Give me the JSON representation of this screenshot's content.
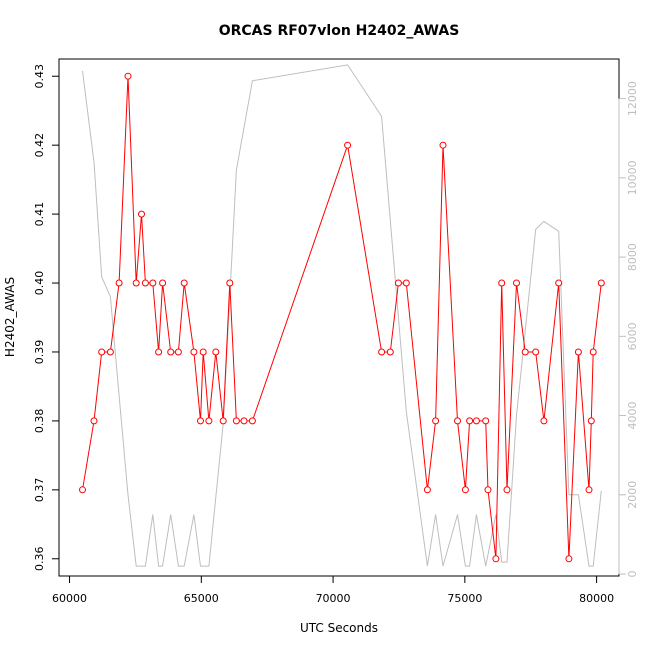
{
  "chart_data": {
    "type": "line",
    "title": "ORCAS RF07vlon H2402_AWAS",
    "xlabel": "UTC Seconds",
    "ylabel": "H2402_AWAS",
    "xlim": [
      59600,
      80850
    ],
    "ylim": [
      0.3575,
      0.4325
    ],
    "y2lim": [
      -50,
      13000
    ],
    "x_ticks": [
      60000,
      65000,
      70000,
      75000,
      80000
    ],
    "x_tick_labels": [
      "60000",
      "65000",
      "70000",
      "75000",
      "80000"
    ],
    "y_ticks": [
      0.36,
      0.37,
      0.38,
      0.39,
      0.4,
      0.41,
      0.42,
      0.43
    ],
    "y_tick_labels": [
      "0.36",
      "0.37",
      "0.38",
      "0.39",
      "0.40",
      "0.41",
      "0.42",
      "0.43"
    ],
    "y2_ticks": [
      0,
      2000,
      4000,
      6000,
      8000,
      10000,
      12000
    ],
    "y2_tick_labels": [
      "0",
      "2000",
      "4000",
      "6000",
      "8000",
      "10000",
      "12000"
    ],
    "colors": {
      "series": "#ff0000",
      "secondary": "#bebebe",
      "axis": "#000000"
    },
    "series": [
      {
        "axis": "left",
        "style": "line-with-open-circles",
        "x": [
          60490,
          60930,
          61220,
          61550,
          61880,
          62220,
          62530,
          62730,
          62880,
          63160,
          63380,
          63530,
          63840,
          64130,
          64350,
          64720,
          64970,
          65070,
          65290,
          65550,
          65830,
          66080,
          66330,
          66620,
          66940,
          70550,
          71840,
          72170,
          72480,
          72780,
          73580,
          73890,
          74170,
          74720,
          75020,
          75180,
          75440,
          75790,
          75880,
          76180,
          76400,
          76600,
          76960,
          77290,
          77690,
          78000,
          78560,
          78950,
          79310,
          79710,
          79800,
          79870,
          80180
        ],
        "y": [
          0.37,
          0.38,
          0.39,
          0.39,
          0.4,
          0.43,
          0.4,
          0.41,
          0.4,
          0.4,
          0.39,
          0.4,
          0.39,
          0.39,
          0.4,
          0.39,
          0.38,
          0.39,
          0.38,
          0.39,
          0.38,
          0.4,
          0.38,
          0.38,
          0.38,
          0.42,
          0.39,
          0.39,
          0.4,
          0.4,
          0.37,
          0.38,
          0.42,
          0.38,
          0.37,
          0.38,
          0.38,
          0.38,
          0.37,
          0.36,
          0.4,
          0.37,
          0.4,
          0.39,
          0.39,
          0.38,
          0.4,
          0.36,
          0.39,
          0.37,
          0.38,
          0.39,
          0.4
        ]
      },
      {
        "axis": "right",
        "style": "line",
        "x": [
          60490,
          60930,
          61220,
          61550,
          61880,
          62220,
          62530,
          62880,
          63160,
          63380,
          63530,
          63840,
          64130,
          64350,
          64720,
          64970,
          65290,
          65830,
          66330,
          66940,
          70550,
          71840,
          72780,
          73580,
          73890,
          74170,
          74720,
          75020,
          75180,
          75440,
          75790,
          76180,
          76400,
          76600,
          76960,
          77690,
          78000,
          78560,
          78950,
          79310,
          79710,
          79870,
          80180
        ],
        "y": [
          12700,
          10400,
          7500,
          7000,
          4500,
          2000,
          200,
          200,
          1500,
          200,
          200,
          1500,
          200,
          200,
          1500,
          200,
          200,
          3800,
          10200,
          12450,
          12850,
          11550,
          4100,
          200,
          1500,
          200,
          1500,
          200,
          200,
          1500,
          200,
          1500,
          300,
          300,
          4000,
          8700,
          8900,
          8650,
          2000,
          2000,
          200,
          200,
          2100
        ]
      }
    ]
  }
}
